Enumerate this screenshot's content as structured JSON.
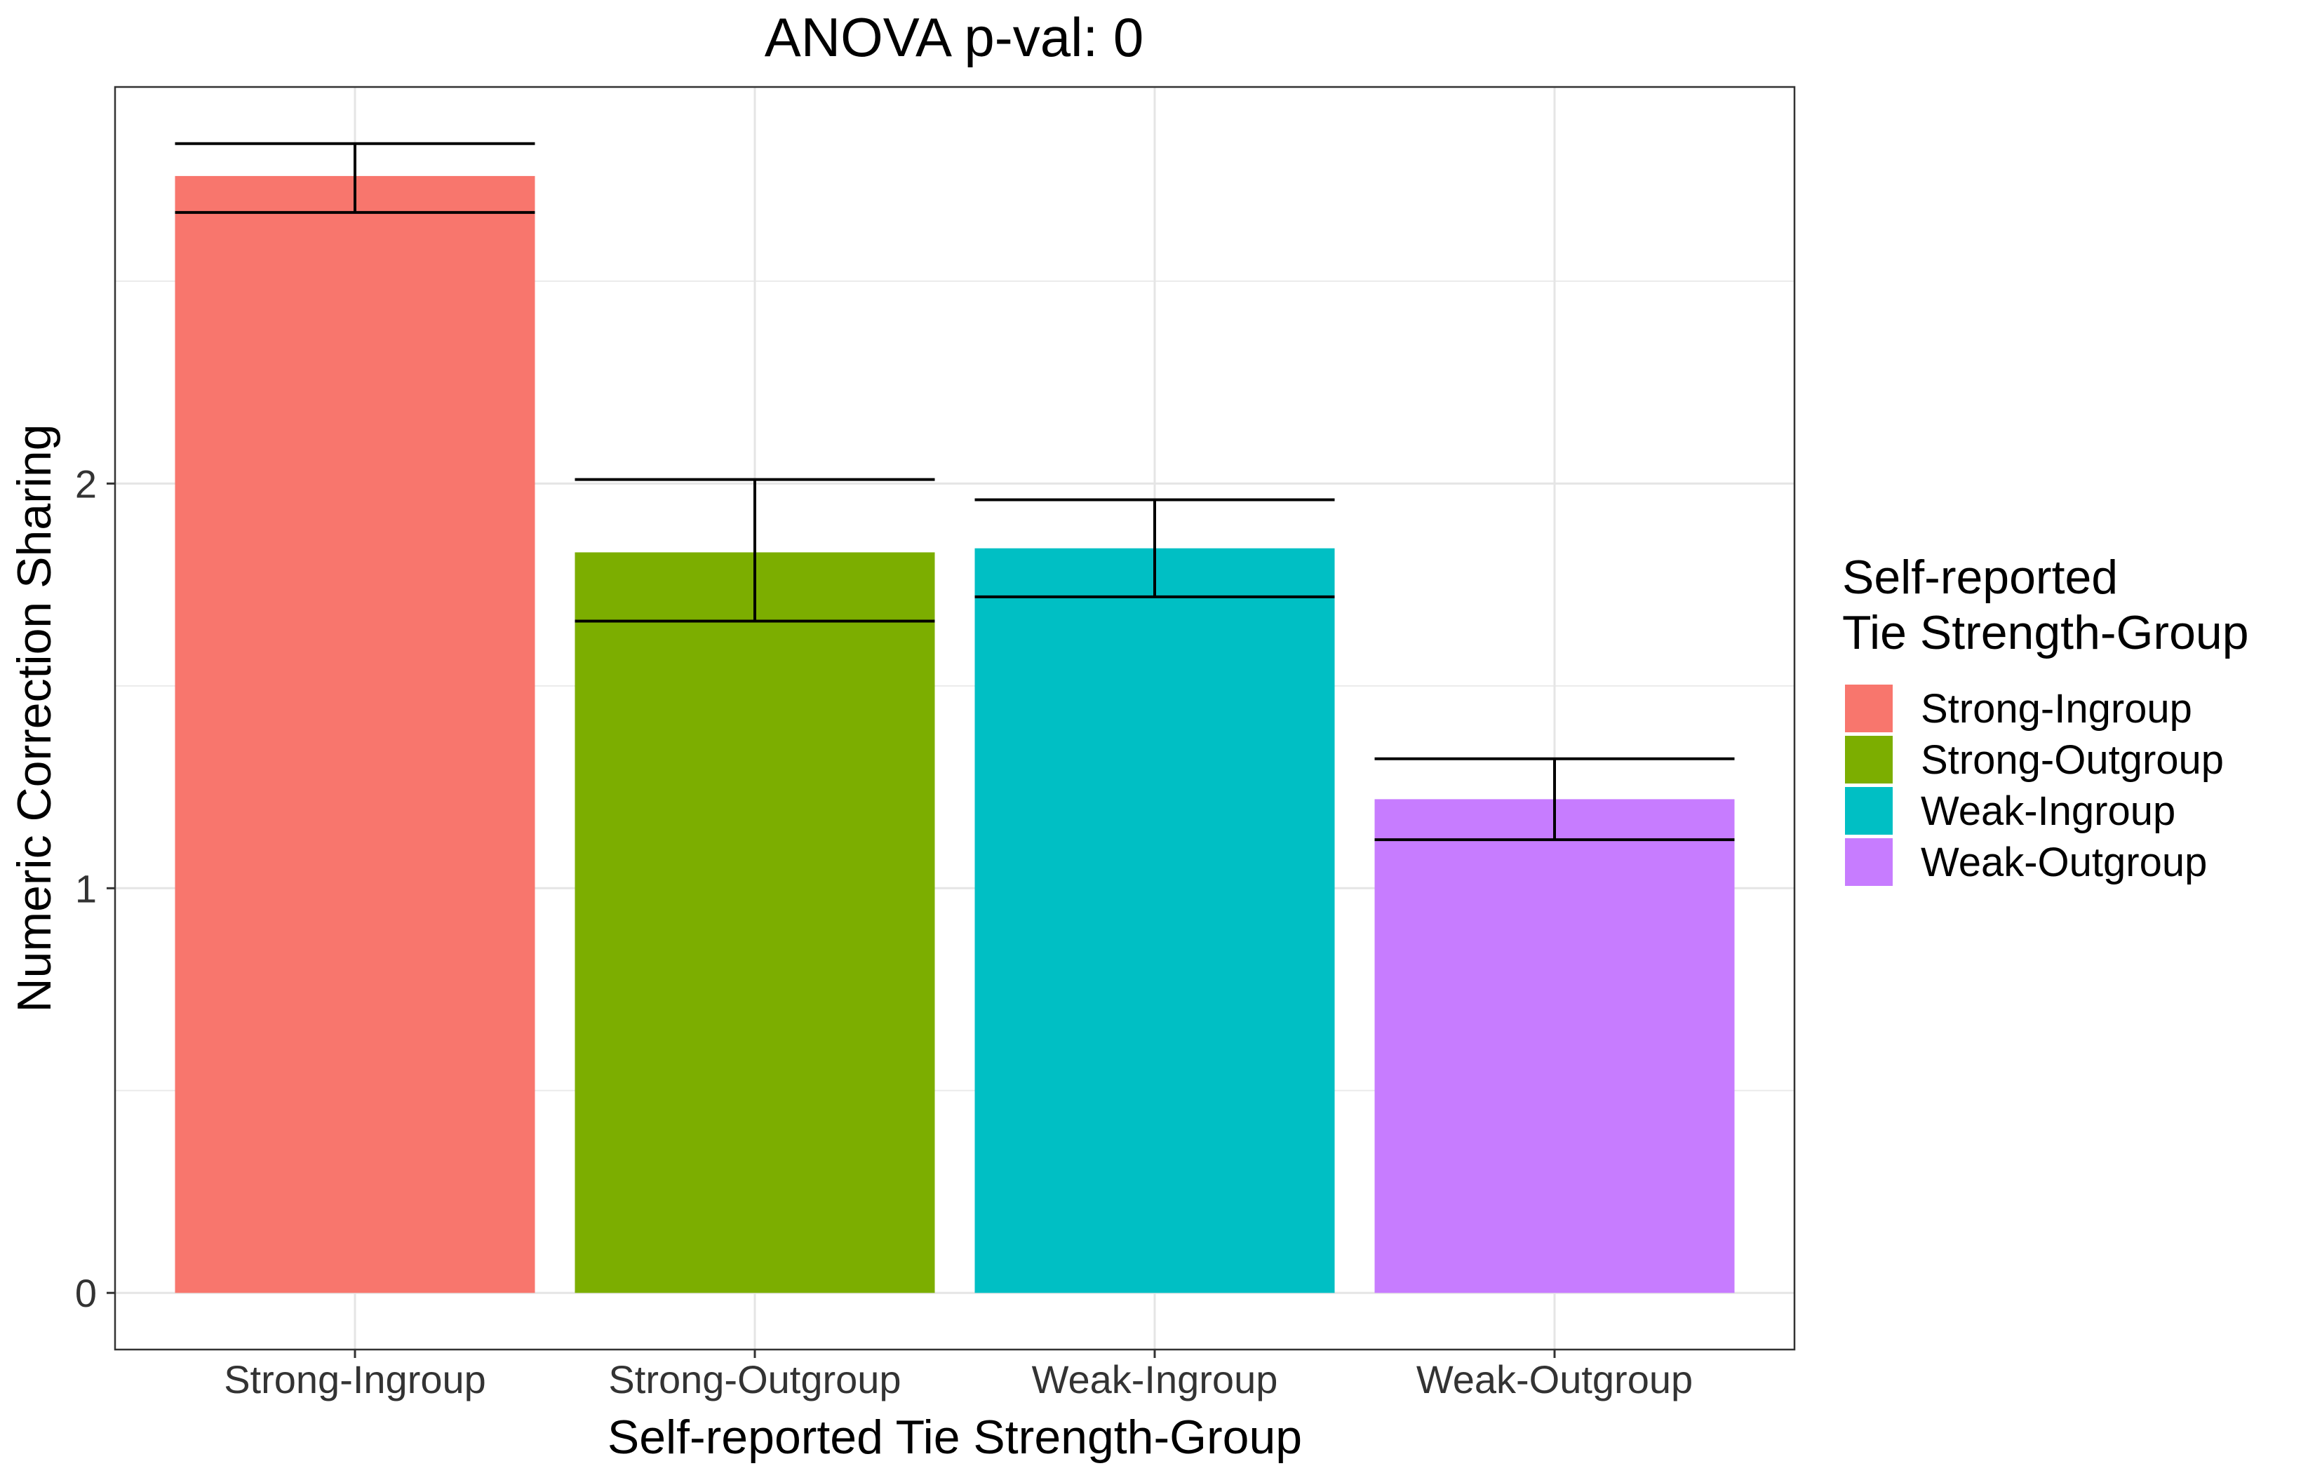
{
  "chart_data": {
    "type": "bar",
    "title": "ANOVA p-val: 0",
    "xlabel": "Self-reported Tie Strength-Group",
    "ylabel": "Numeric Correction Sharing",
    "categories": [
      "Strong-Ingroup",
      "Strong-Outgroup",
      "Weak-Ingroup",
      "Weak-Outgroup"
    ],
    "values": [
      2.76,
      1.83,
      1.84,
      1.22
    ],
    "error_low": [
      2.67,
      1.66,
      1.72,
      1.12
    ],
    "error_high": [
      2.84,
      2.01,
      1.96,
      1.32
    ],
    "colors": [
      "#F8766D",
      "#7CAE00",
      "#00BFC4",
      "#C77CFF"
    ],
    "ylim": [
      -0.14,
      2.98
    ],
    "yticks": [
      0,
      1,
      2
    ],
    "ytick_labels": [
      "0",
      "1",
      "2"
    ],
    "grid": true,
    "legend": {
      "title_lines": [
        "Self-reported",
        "Tie Strength-Group"
      ],
      "placement": "right",
      "entries": [
        "Strong-Ingroup",
        "Strong-Outgroup",
        "Weak-Ingroup",
        "Weak-Outgroup"
      ]
    }
  }
}
